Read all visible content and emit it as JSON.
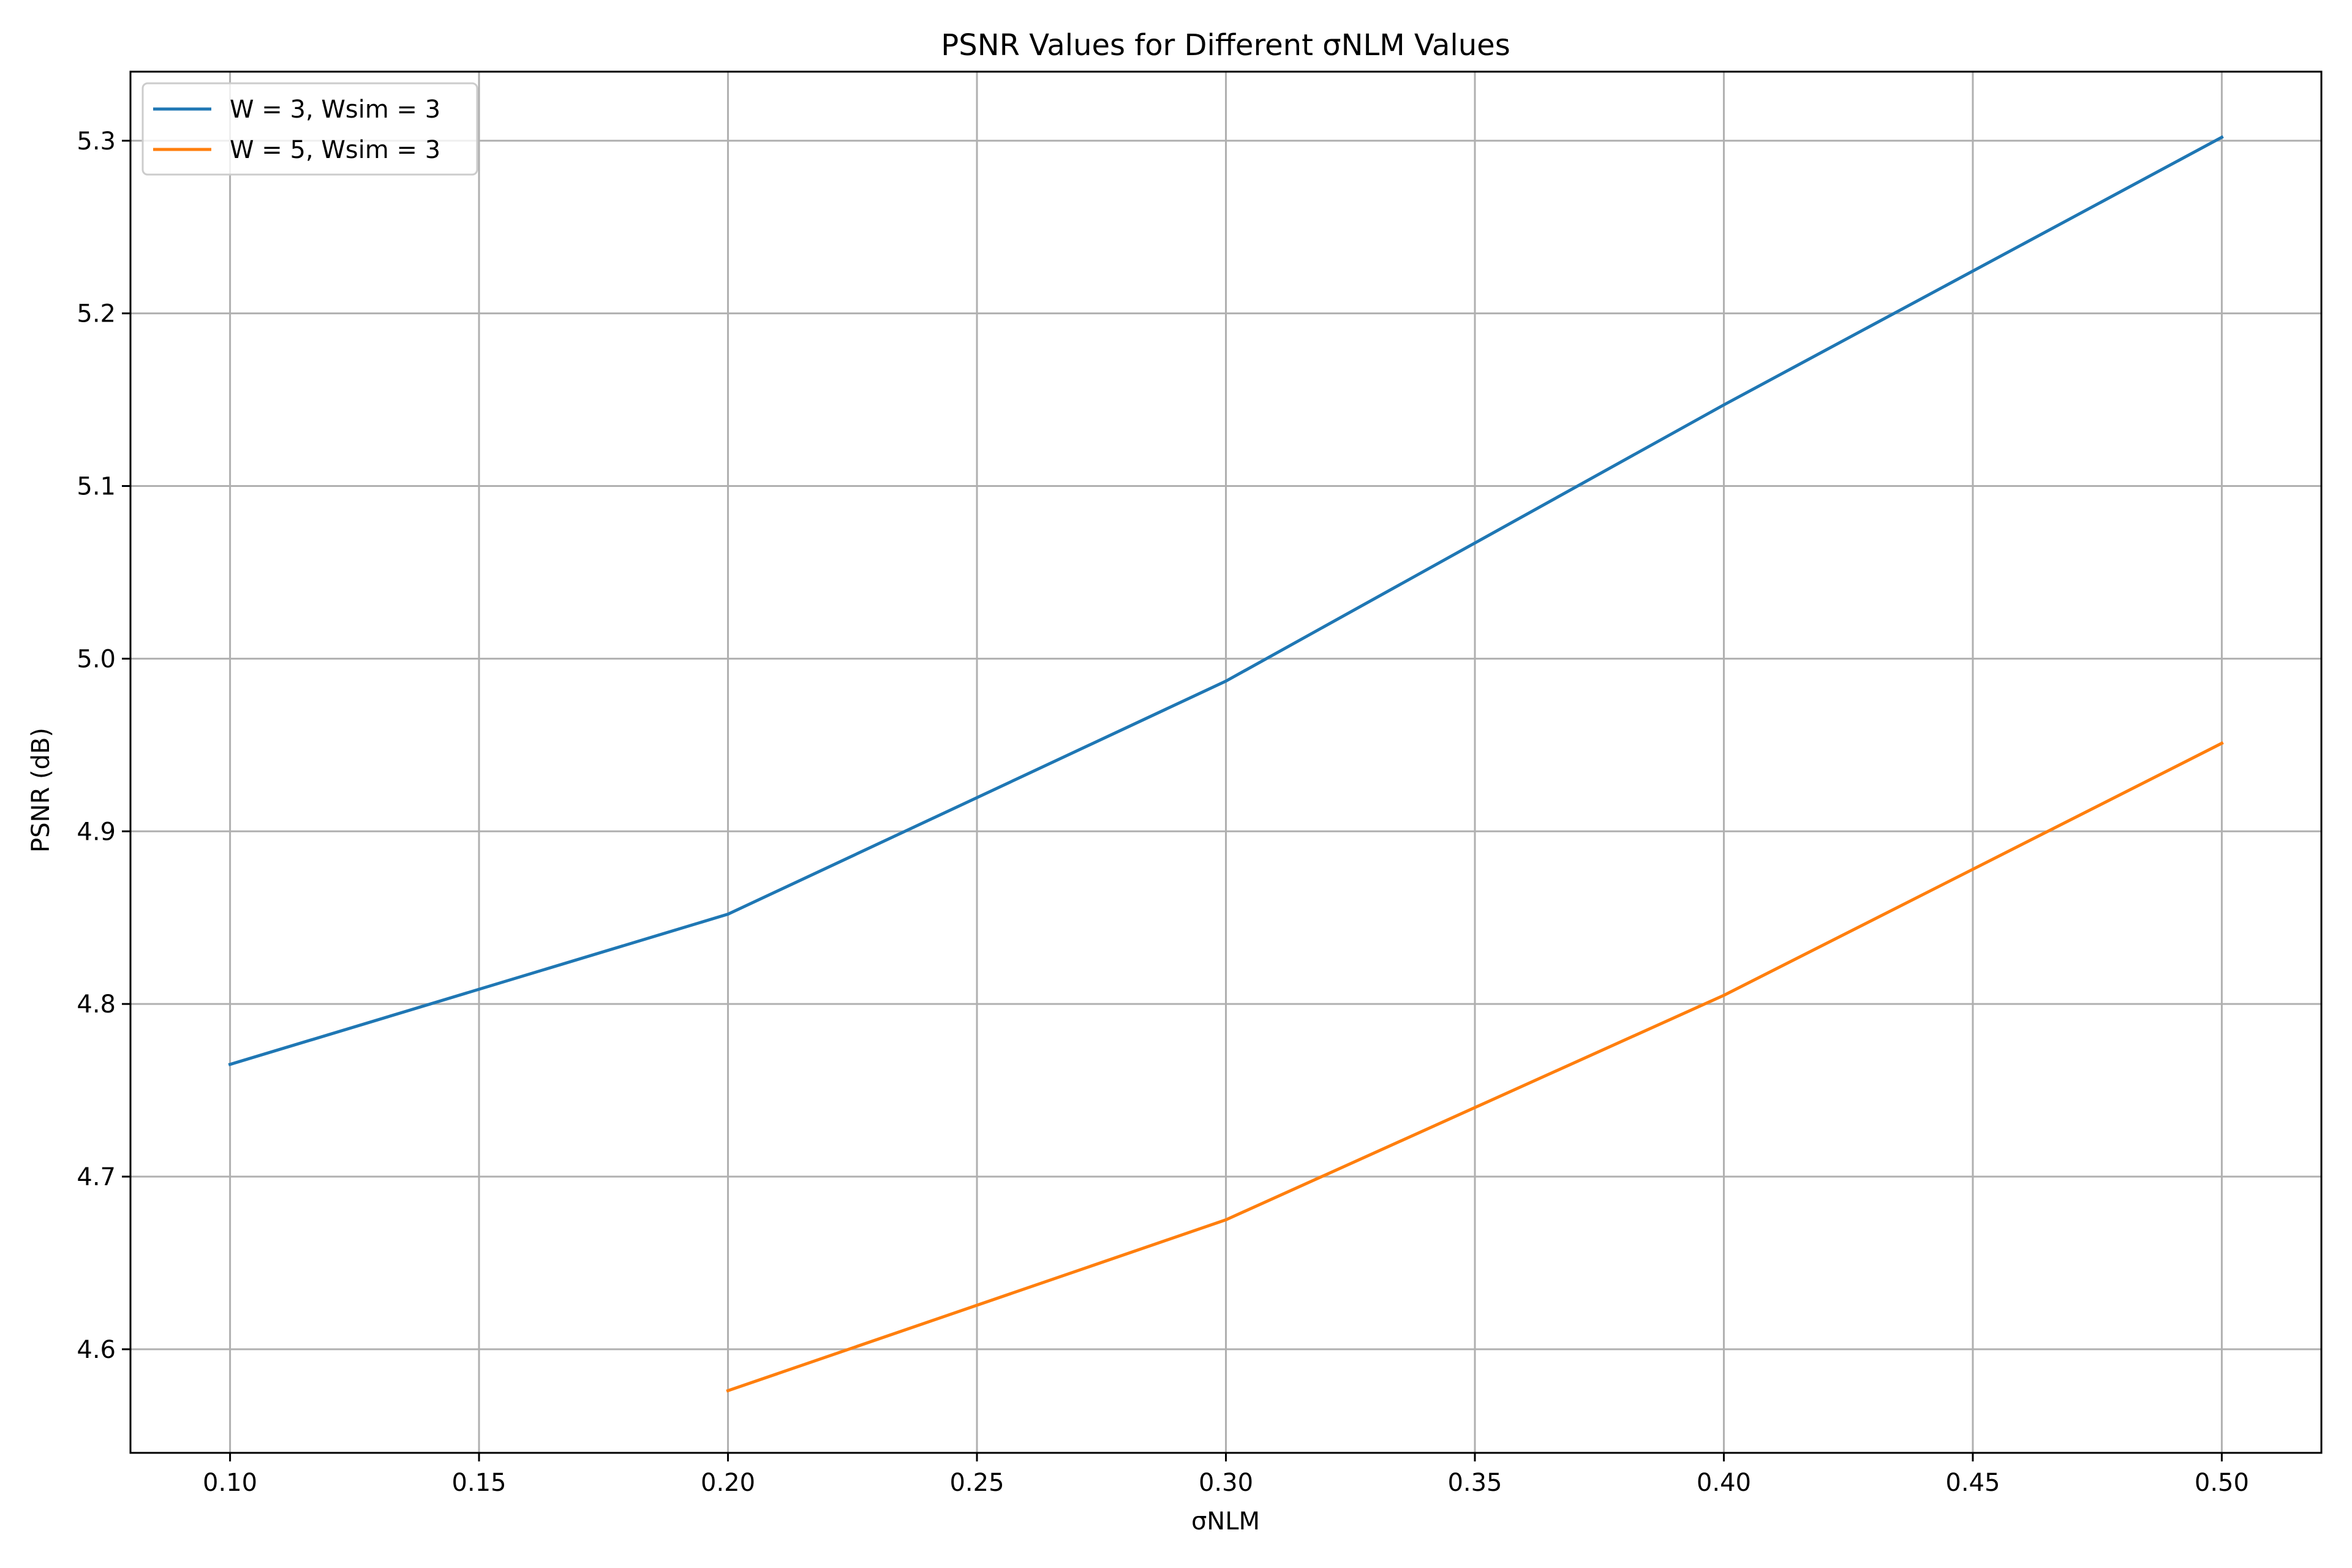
{
  "chart_data": {
    "type": "line",
    "title": "PSNR Values for Different σNLM Values",
    "xlabel": "σNLM",
    "ylabel": "PSNR (dB)",
    "xlim": [
      0.08,
      0.52
    ],
    "ylim": [
      4.54,
      5.34
    ],
    "xticks": [
      0.1,
      0.15,
      0.2,
      0.25,
      0.3,
      0.35,
      0.4,
      0.45,
      0.5
    ],
    "xtick_labels": [
      "0.10",
      "0.15",
      "0.20",
      "0.25",
      "0.30",
      "0.35",
      "0.40",
      "0.45",
      "0.50"
    ],
    "yticks": [
      4.6,
      4.7,
      4.8,
      4.9,
      5.0,
      5.1,
      5.2,
      5.3
    ],
    "ytick_labels": [
      "4.6",
      "4.7",
      "4.8",
      "4.9",
      "5.0",
      "5.1",
      "5.2",
      "5.3"
    ],
    "grid": true,
    "legend_position": "top-left",
    "series": [
      {
        "name": "W = 3, Wsim = 3",
        "color": "#1f77b4",
        "x": [
          0.1,
          0.2,
          0.3,
          0.4,
          0.5
        ],
        "y": [
          4.765,
          4.852,
          4.987,
          5.147,
          5.302
        ]
      },
      {
        "name": "W = 5, Wsim = 3",
        "color": "#ff7f0e",
        "x": [
          0.2,
          0.3,
          0.4,
          0.5
        ],
        "y": [
          4.576,
          4.675,
          4.805,
          4.951
        ]
      }
    ]
  }
}
